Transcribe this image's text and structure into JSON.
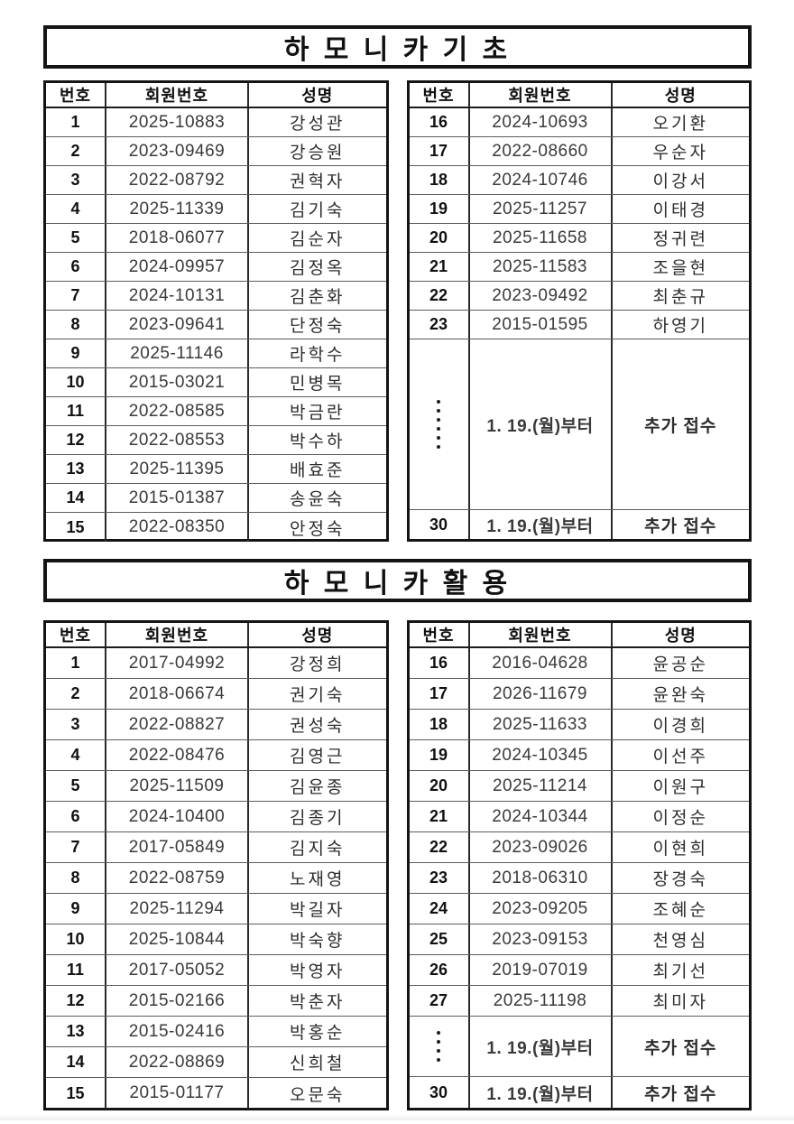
{
  "page": {
    "background": "#ffffff",
    "text_color": "#1a1a1a",
    "accent_blue": "#1e1ecd"
  },
  "columns": [
    "번호",
    "회원번호",
    "성명"
  ],
  "sections": [
    {
      "title": "하 모 니 카 기 초",
      "left_rows": [
        [
          "1",
          "2025-10883",
          "강성관"
        ],
        [
          "2",
          "2023-09469",
          "강승원"
        ],
        [
          "3",
          "2022-08792",
          "권혁자"
        ],
        [
          "4",
          "2025-11339",
          "김기숙"
        ],
        [
          "5",
          "2018-06077",
          "김순자"
        ],
        [
          "6",
          "2024-09957",
          "김정옥"
        ],
        [
          "7",
          "2024-10131",
          "김춘화"
        ],
        [
          "8",
          "2023-09641",
          "단정숙"
        ],
        [
          "9",
          "2025-11146",
          "라학수"
        ],
        [
          "10",
          "2015-03021",
          "민병목"
        ],
        [
          "11",
          "2022-08585",
          "박금란"
        ],
        [
          "12",
          "2022-08553",
          "박수하"
        ],
        [
          "13",
          "2025-11395",
          "배효준"
        ],
        [
          "14",
          "2015-01387",
          "송윤숙"
        ],
        [
          "15",
          "2022-08350",
          "안정숙"
        ]
      ],
      "right_rows": [
        [
          "16",
          "2024-10693",
          "오기환"
        ],
        [
          "17",
          "2022-08660",
          "우순자"
        ],
        [
          "18",
          "2024-10746",
          "이강서"
        ],
        [
          "19",
          "2025-11257",
          "이태경"
        ],
        [
          "20",
          "2025-11658",
          "정귀련"
        ],
        [
          "21",
          "2025-11583",
          "조을현"
        ],
        [
          "22",
          "2023-09492",
          "최춘규"
        ],
        [
          "23",
          "2015-01595",
          "하영기"
        ]
      ],
      "dots_count": 6,
      "notice_date": "1. 19.(월)부터",
      "notice_label": "추가 접수",
      "final_no": "30"
    },
    {
      "title": "하 모 니 카 활 용",
      "left_rows": [
        [
          "1",
          "2017-04992",
          "강정희"
        ],
        [
          "2",
          "2018-06674",
          "권기숙"
        ],
        [
          "3",
          "2022-08827",
          "권성숙"
        ],
        [
          "4",
          "2022-08476",
          "김영근"
        ],
        [
          "5",
          "2025-11509",
          "김윤종"
        ],
        [
          "6",
          "2024-10400",
          "김종기"
        ],
        [
          "7",
          "2017-05849",
          "김지숙"
        ],
        [
          "8",
          "2022-08759",
          "노재영"
        ],
        [
          "9",
          "2025-11294",
          "박길자"
        ],
        [
          "10",
          "2025-10844",
          "박숙향"
        ],
        [
          "11",
          "2017-05052",
          "박영자"
        ],
        [
          "12",
          "2015-02166",
          "박춘자"
        ],
        [
          "13",
          "2015-02416",
          "박홍순"
        ],
        [
          "14",
          "2022-08869",
          "신희철"
        ],
        [
          "15",
          "2015-01177",
          "오문숙"
        ]
      ],
      "right_rows": [
        [
          "16",
          "2016-04628",
          "윤공순"
        ],
        [
          "17",
          "2026-11679",
          "윤완숙"
        ],
        [
          "18",
          "2025-11633",
          "이경희"
        ],
        [
          "19",
          "2024-10345",
          "이선주"
        ],
        [
          "20",
          "2025-11214",
          "이원구"
        ],
        [
          "21",
          "2024-10344",
          "이정순"
        ],
        [
          "22",
          "2023-09026",
          "이현희"
        ],
        [
          "23",
          "2018-06310",
          "장경숙"
        ],
        [
          "24",
          "2023-09205",
          "조혜순"
        ],
        [
          "25",
          "2023-09153",
          "천영심"
        ],
        [
          "26",
          "2019-07019",
          "최기선"
        ],
        [
          "27",
          "2025-11198",
          "최미자"
        ]
      ],
      "dots_count": 4,
      "notice_date": "1. 19.(월)부터",
      "notice_label": "추가 접수",
      "final_no": "30"
    }
  ]
}
